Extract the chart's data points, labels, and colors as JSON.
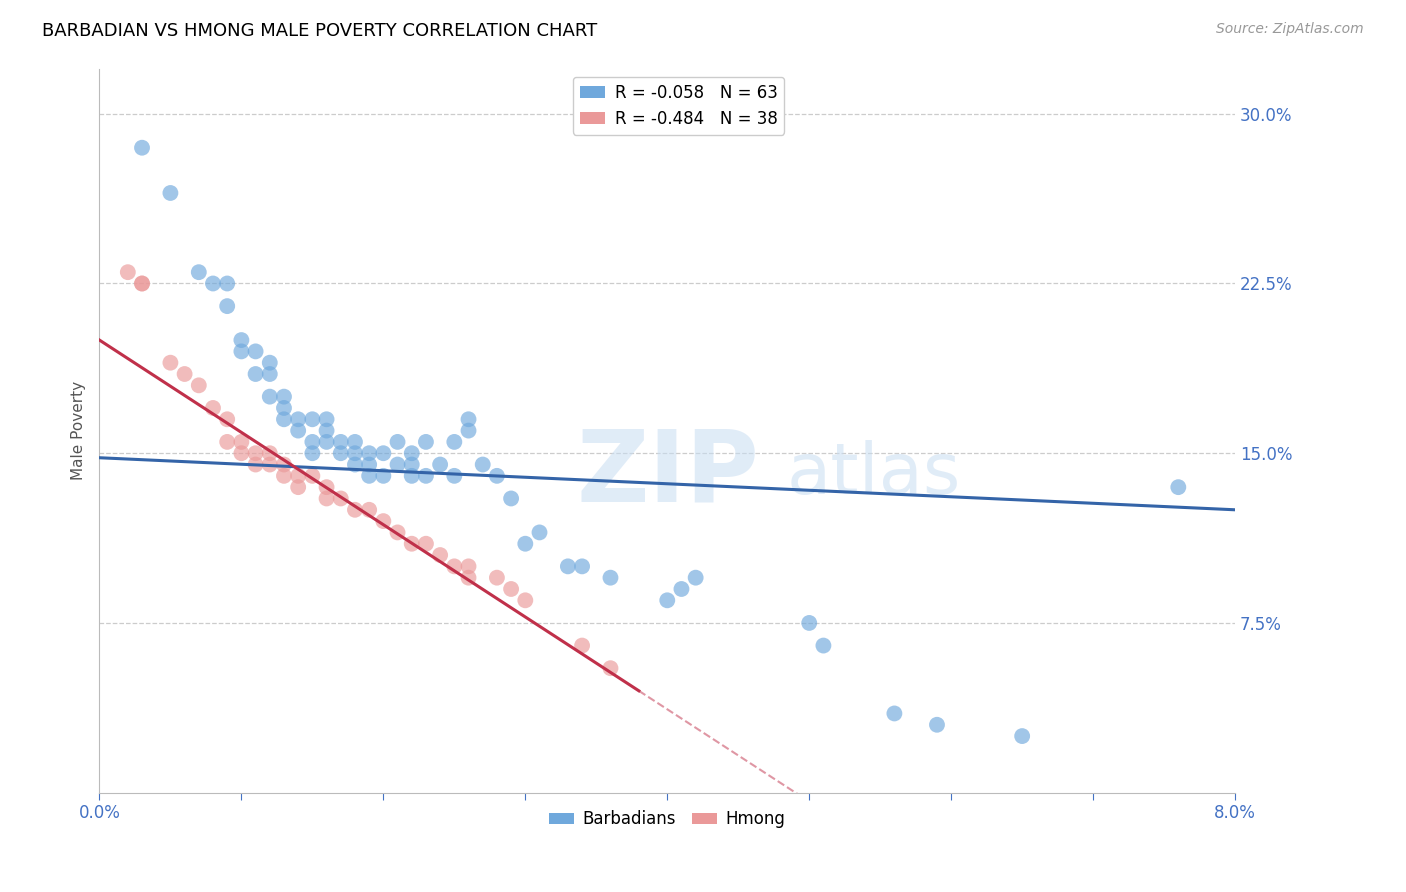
{
  "title": "BARBADIAN VS HMONG MALE POVERTY CORRELATION CHART",
  "source": "Source: ZipAtlas.com",
  "ylabel": "Male Poverty",
  "ytick_values": [
    0.075,
    0.15,
    0.225,
    0.3
  ],
  "ytick_labels": [
    "7.5%",
    "15.0%",
    "22.5%",
    "30.0%"
  ],
  "xlim": [
    0.0,
    0.08
  ],
  "ylim": [
    0.0,
    0.32
  ],
  "watermark_zip": "ZIP",
  "watermark_atlas": "atlas",
  "legend_barbadian_r": "R = -0.058",
  "legend_barbadian_n": "N = 63",
  "legend_hmong_r": "R = -0.484",
  "legend_hmong_n": "N = 38",
  "color_barbadian": "#6fa8dc",
  "color_hmong": "#ea9999",
  "color_trendline_barbadian": "#3464a8",
  "color_trendline_hmong": "#c0304a",
  "color_axis_labels": "#4472c4",
  "barbadian_x": [
    0.003,
    0.005,
    0.007,
    0.008,
    0.009,
    0.009,
    0.01,
    0.01,
    0.011,
    0.011,
    0.012,
    0.012,
    0.012,
    0.013,
    0.013,
    0.013,
    0.014,
    0.014,
    0.015,
    0.015,
    0.015,
    0.016,
    0.016,
    0.016,
    0.017,
    0.017,
    0.018,
    0.018,
    0.018,
    0.019,
    0.019,
    0.019,
    0.02,
    0.02,
    0.021,
    0.021,
    0.022,
    0.022,
    0.022,
    0.023,
    0.023,
    0.024,
    0.025,
    0.025,
    0.026,
    0.026,
    0.027,
    0.028,
    0.029,
    0.03,
    0.031,
    0.033,
    0.034,
    0.036,
    0.04,
    0.041,
    0.042,
    0.05,
    0.051,
    0.056,
    0.059,
    0.065,
    0.076
  ],
  "barbadian_y": [
    0.285,
    0.265,
    0.23,
    0.225,
    0.225,
    0.215,
    0.2,
    0.195,
    0.195,
    0.185,
    0.19,
    0.185,
    0.175,
    0.175,
    0.17,
    0.165,
    0.165,
    0.16,
    0.165,
    0.155,
    0.15,
    0.165,
    0.16,
    0.155,
    0.155,
    0.15,
    0.155,
    0.15,
    0.145,
    0.15,
    0.145,
    0.14,
    0.15,
    0.14,
    0.155,
    0.145,
    0.15,
    0.145,
    0.14,
    0.155,
    0.14,
    0.145,
    0.155,
    0.14,
    0.165,
    0.16,
    0.145,
    0.14,
    0.13,
    0.11,
    0.115,
    0.1,
    0.1,
    0.095,
    0.085,
    0.09,
    0.095,
    0.075,
    0.065,
    0.035,
    0.03,
    0.025,
    0.135
  ],
  "hmong_x": [
    0.002,
    0.003,
    0.003,
    0.005,
    0.006,
    0.007,
    0.008,
    0.009,
    0.009,
    0.01,
    0.01,
    0.011,
    0.011,
    0.012,
    0.012,
    0.013,
    0.013,
    0.014,
    0.014,
    0.015,
    0.016,
    0.016,
    0.017,
    0.018,
    0.019,
    0.02,
    0.021,
    0.022,
    0.023,
    0.024,
    0.025,
    0.026,
    0.026,
    0.028,
    0.029,
    0.03,
    0.034,
    0.036
  ],
  "hmong_y": [
    0.23,
    0.225,
    0.225,
    0.19,
    0.185,
    0.18,
    0.17,
    0.165,
    0.155,
    0.155,
    0.15,
    0.15,
    0.145,
    0.15,
    0.145,
    0.145,
    0.14,
    0.14,
    0.135,
    0.14,
    0.135,
    0.13,
    0.13,
    0.125,
    0.125,
    0.12,
    0.115,
    0.11,
    0.11,
    0.105,
    0.1,
    0.1,
    0.095,
    0.095,
    0.09,
    0.085,
    0.065,
    0.055
  ],
  "trendline_barb_x0": 0.0,
  "trendline_barb_y0": 0.148,
  "trendline_barb_x1": 0.08,
  "trendline_barb_y1": 0.125,
  "trendline_hmong_x0": 0.0,
  "trendline_hmong_y0": 0.2,
  "trendline_hmong_x1": 0.038,
  "trendline_hmong_y1": 0.045
}
